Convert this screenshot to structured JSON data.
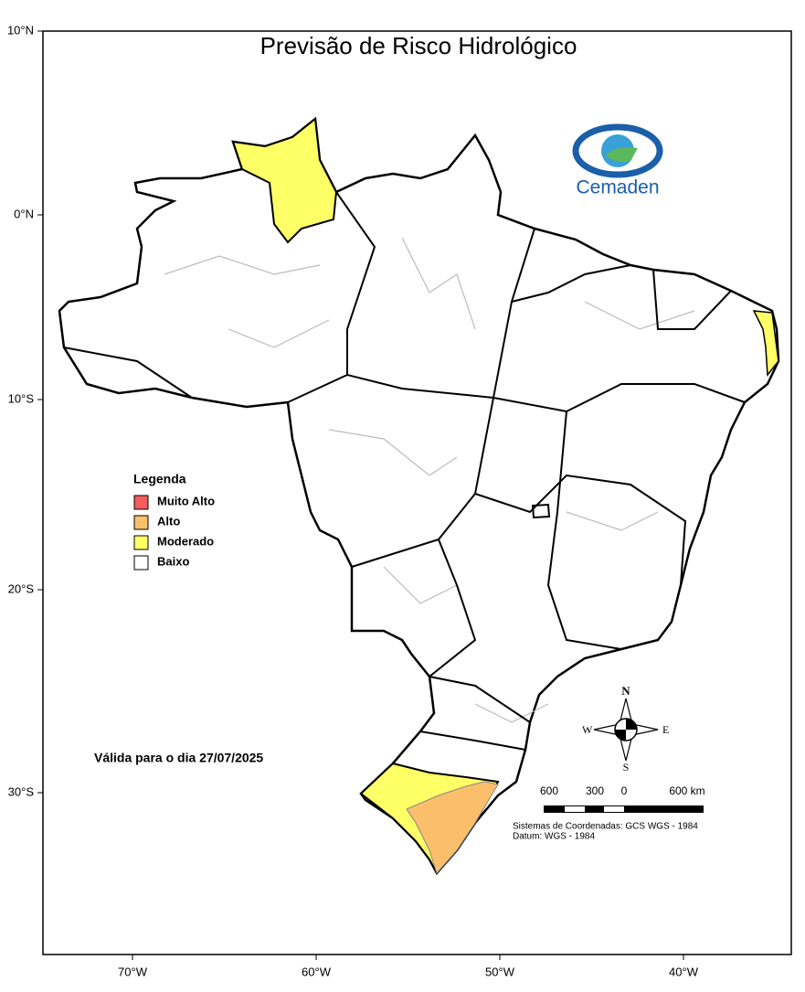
{
  "header": {
    "title": "Previsão de Risco Hidrológico",
    "logo": "Cemaden"
  },
  "axes": {
    "latitude": [
      "10°N",
      "0°N",
      "10°S",
      "20°S",
      "30°S"
    ],
    "longitude": [
      "70°W",
      "60°W",
      "50°W",
      "40°W"
    ]
  },
  "legend": {
    "title": "Legenda",
    "items": [
      {
        "label": "Muito Alto",
        "color": "#f25c5c"
      },
      {
        "label": "Alto",
        "color": "#fbbf6b"
      },
      {
        "label": "Moderado",
        "color": "#ffff66"
      },
      {
        "label": "Baixo",
        "color": "#ffffff"
      }
    ]
  },
  "validity": "Válida para o dia 27/07/2025",
  "compass": {
    "north": "N",
    "south": "S",
    "east": "E",
    "west": "W"
  },
  "scale": {
    "labels": [
      "600",
      "300",
      "0",
      "600 km"
    ]
  },
  "notes": [
    "Sistemas de Coordenadas: GCS WGS - 1984",
    "Datum: WGS - 1984"
  ]
}
